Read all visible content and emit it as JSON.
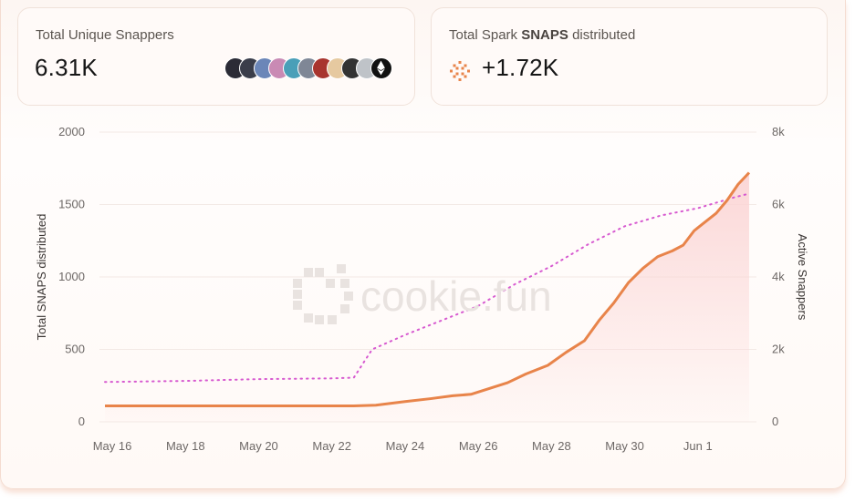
{
  "cards": {
    "snappers": {
      "label": "Total Unique Snappers",
      "value": "6.31K"
    },
    "snaps": {
      "label_pre": "Total Spark ",
      "label_bold": "SNAPS",
      "label_post": " distributed",
      "value": "+1.72K",
      "icon": "spark-icon"
    },
    "avatar_colors": [
      "#2b2b36",
      "#3a3d4a",
      "#6b86b8",
      "#c98ab4",
      "#4a9fb8",
      "#7f8796",
      "#a8342e",
      "#e6c9a0",
      "#333333",
      "#bfc3c8",
      "#111111"
    ]
  },
  "watermark": "cookie.fun",
  "colors": {
    "snaps_line": "#e8844a",
    "snappers_line": "#d75ad0",
    "area_fill": "#fbd5d5"
  },
  "chart_data": {
    "type": "line",
    "xlabel": "",
    "ylabel": "Total SNAPS distributed",
    "y2label": "Active Snappers",
    "x_ticks": [
      "May 16",
      "May 18",
      "May 20",
      "May 22",
      "May 24",
      "May 26",
      "May 28",
      "May 30",
      "Jun 1"
    ],
    "x_tick_positions": [
      0,
      2,
      4,
      6,
      8,
      10,
      12,
      14,
      16
    ],
    "xlim": [
      -0.35,
      17.6
    ],
    "ylim": [
      0,
      2000
    ],
    "y_ticks": [
      "0",
      "500",
      "1000",
      "1500",
      "2000"
    ],
    "y2lim": [
      0,
      8000
    ],
    "y2_ticks": [
      "0",
      "2k",
      "4k",
      "6k",
      "8k"
    ],
    "grid": "horizontal",
    "series": [
      {
        "axis": "left",
        "style": "solid-area",
        "x": [
          -0.2,
          2,
          4,
          6,
          6.6,
          7.2,
          8,
          8.7,
          9.3,
          9.8,
          10.3,
          10.8,
          11.3,
          11.9,
          12.4,
          12.9,
          13.3,
          13.7,
          14.1,
          14.5,
          14.9,
          15.3,
          15.6,
          15.9,
          16.2,
          16.5,
          16.8,
          17.1,
          17.4
        ],
        "y": [
          110,
          110,
          110,
          110,
          110,
          115,
          140,
          160,
          180,
          190,
          230,
          270,
          330,
          390,
          480,
          560,
          700,
          820,
          960,
          1060,
          1140,
          1180,
          1220,
          1320,
          1380,
          1440,
          1530,
          1640,
          1720
        ]
      },
      {
        "axis": "right",
        "style": "dotted",
        "x": [
          -0.2,
          2,
          4,
          6,
          6.6,
          7.1,
          8,
          9,
          10,
          11,
          12,
          13,
          14,
          15,
          16,
          17,
          17.4
        ],
        "y": [
          1100,
          1130,
          1180,
          1200,
          1220,
          2000,
          2400,
          2800,
          3200,
          3800,
          4300,
          4900,
          5400,
          5700,
          5900,
          6200,
          6300
        ]
      }
    ]
  }
}
